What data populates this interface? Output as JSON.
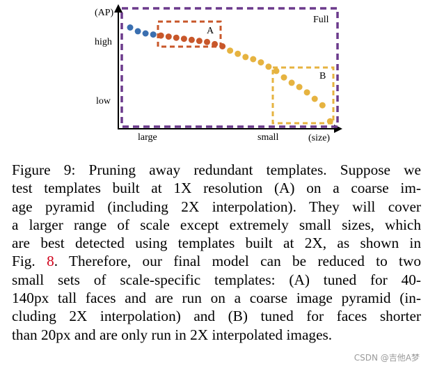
{
  "figure": {
    "chart_data": {
      "type": "scatter",
      "title": "",
      "ylabel": "(AP)",
      "xlabel": "(size)",
      "x_ticks": [
        "large",
        "small"
      ],
      "y_ticks": [
        "high",
        "low"
      ],
      "regions": [
        {
          "label": "Full",
          "color": "#6b3a8c",
          "style": "dashed"
        },
        {
          "label": "A",
          "color": "#c8572a",
          "style": "dashed"
        },
        {
          "label": "B",
          "color": "#e6b340",
          "style": "dashed"
        }
      ],
      "series": [
        {
          "color": "#3a6fb0",
          "x": [
            0,
            1,
            2,
            3
          ],
          "y": [
            0.925,
            0.89,
            0.87,
            0.86
          ]
        },
        {
          "color": "#c8572a",
          "x": [
            4,
            5,
            6,
            7,
            8,
            9,
            10,
            11,
            12
          ],
          "y": [
            0.85,
            0.84,
            0.83,
            0.82,
            0.81,
            0.8,
            0.79,
            0.77,
            0.75
          ]
        },
        {
          "color": "#e6b340",
          "x": [
            13,
            14,
            15,
            16,
            17,
            18,
            19,
            20,
            21,
            22,
            23,
            24,
            25,
            26
          ],
          "y": [
            0.71,
            0.68,
            0.65,
            0.63,
            0.6,
            0.56,
            0.52,
            0.46,
            0.41,
            0.37,
            0.32,
            0.26,
            0.2,
            0.05
          ]
        }
      ]
    }
  },
  "caption": {
    "lines": [
      "Figure 9: Pruning away redundant templates. Suppose we",
      "test templates built at 1X resolution (A) on a coarse im-",
      "age pyramid (including 2X interpolation). They will cover",
      "a larger range of scale except extremely small sizes, which",
      "are best detected using templates built at 2X, as shown in"
    ],
    "line6_pre": "Fig. ",
    "line6_ref": "8",
    "line6_post": ". Therefore, our final model can be reduced to two",
    "lines_after": [
      "small sets of scale-specific templates: (A) tuned for 40-",
      "140px tall faces and are run on a coarse image pyramid (in-",
      "cluding 2X interpolation) and (B) tuned for faces shorter",
      "than 20px and are only run in 2X interpolated images."
    ]
  },
  "watermark": "CSDN @吉他A梦"
}
